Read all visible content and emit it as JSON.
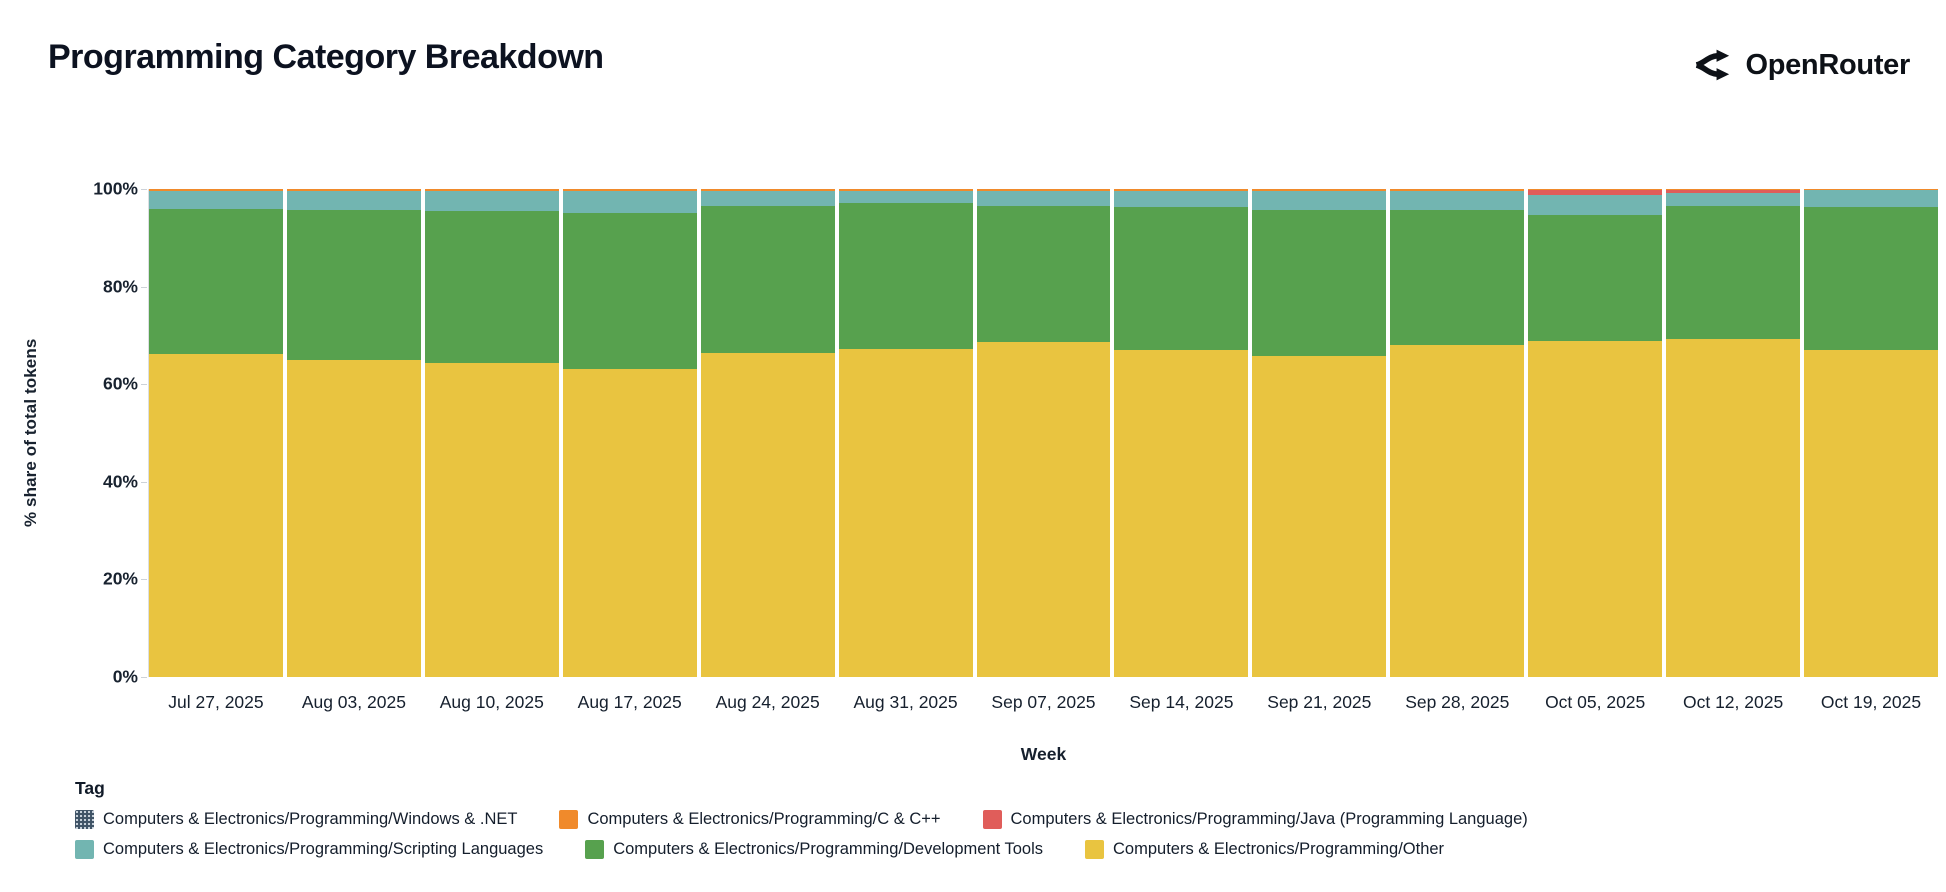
{
  "header": {
    "title": "Programming Category Breakdown",
    "brand": "OpenRouter"
  },
  "chart_data": {
    "type": "bar",
    "subtype": "stacked-percent",
    "title": "Programming Category Breakdown",
    "xlabel": "Week",
    "ylabel": "% share of total tokens",
    "ylim": [
      0,
      100
    ],
    "ytick_labels": [
      "0%",
      "20%",
      "40%",
      "60%",
      "80%",
      "100%"
    ],
    "grid": false,
    "legend_title": "Tag",
    "legend_position": "bottom",
    "categories": [
      "Jul 27, 2025",
      "Aug 03, 2025",
      "Aug 10, 2025",
      "Aug 17, 2025",
      "Aug 24, 2025",
      "Aug 31, 2025",
      "Sep 07, 2025",
      "Sep 14, 2025",
      "Sep 21, 2025",
      "Sep 28, 2025",
      "Oct 05, 2025",
      "Oct 12, 2025",
      "Oct 19, 2025"
    ],
    "series": [
      {
        "key": "other",
        "name": "Computers & Electronics/Programming/Other",
        "color": "#e9c440",
        "values": [
          66.2,
          64.9,
          64.3,
          63.1,
          66.3,
          67.3,
          68.7,
          67.0,
          65.8,
          68.1,
          68.9,
          69.3,
          67.0
        ]
      },
      {
        "key": "development-tools",
        "name": "Computers & Electronics/Programming/Development Tools",
        "color": "#57a14e",
        "values": [
          29.7,
          30.7,
          31.1,
          32.0,
          30.2,
          29.8,
          27.9,
          29.3,
          30.0,
          27.7,
          25.8,
          27.3,
          29.4
        ]
      },
      {
        "key": "scripting-languages",
        "name": "Computers & Electronics/Programming/Scripting Languages",
        "color": "#72b5b1",
        "values": [
          3.7,
          3.9,
          4.1,
          4.4,
          3.1,
          2.5,
          3.0,
          3.3,
          3.8,
          3.8,
          4.1,
          2.5,
          3.3
        ]
      },
      {
        "key": "java",
        "name": "Computers & Electronics/Programming/Java (Programming Language)",
        "color": "#e05d5a",
        "values": [
          0,
          0,
          0,
          0,
          0,
          0,
          0,
          0,
          0,
          0,
          1.0,
          0.7,
          0
        ]
      },
      {
        "key": "c-cpp",
        "name": "Computers & Electronics/Programming/C & C++",
        "color": "#f08a2b",
        "values": [
          0.4,
          0.5,
          0.5,
          0.5,
          0.4,
          0.4,
          0.4,
          0.4,
          0.4,
          0.4,
          0.2,
          0.2,
          0.3
        ]
      },
      {
        "key": "windows-net",
        "name": "Computers & Electronics/Programming/Windows & .NET",
        "color": "#3f5366",
        "values": [
          0,
          0,
          0,
          0,
          0,
          0,
          0,
          0,
          0,
          0,
          0,
          0,
          0
        ]
      }
    ]
  },
  "legend": {
    "title": "Tag",
    "rows": [
      [
        {
          "label": "Computers & Electronics/Programming/Windows & .NET",
          "color": "#3f5366",
          "pattern": "dots"
        },
        {
          "label": "Computers & Electronics/Programming/C & C++",
          "color": "#f08a2b"
        },
        {
          "label": "Computers & Electronics/Programming/Java (Programming Language)",
          "color": "#e05d5a"
        }
      ],
      [
        {
          "label": "Computers & Electronics/Programming/Scripting Languages",
          "color": "#72b5b1"
        },
        {
          "label": "Computers & Electronics/Programming/Development Tools",
          "color": "#57a14e"
        },
        {
          "label": "Computers & Electronics/Programming/Other",
          "color": "#e9c440"
        }
      ]
    ]
  }
}
